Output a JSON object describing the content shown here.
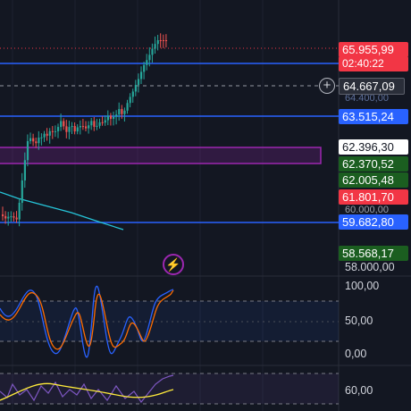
{
  "colors": {
    "background": "#131722",
    "candle_up": "#26a69a",
    "candle_down": "#ef5350",
    "level_line": "#2962ff",
    "zone": "#9c27b0",
    "ma_line": "#26c6da",
    "stoch_k": "#2962ff",
    "stoch_d": "#ff6d00",
    "osc_fast": "#7e57c2",
    "osc_slow": "#ffeb3b"
  },
  "price_scale": {
    "current_price": "65.955,99",
    "countdown": "02:40:22",
    "crosshair_price": "64.667,09",
    "overlapped_label": "64.400,00",
    "labels": [
      {
        "id": "level-63515",
        "text": "63.515,24",
        "style": "blue"
      },
      {
        "id": "price-62396",
        "text": "62.396,30",
        "style": "white"
      },
      {
        "id": "price-62370",
        "text": "62.370,52",
        "style": "green"
      },
      {
        "id": "price-62005",
        "text": "62.005,48",
        "style": "green"
      },
      {
        "id": "price-61801",
        "text": "61.801,70",
        "style": "red"
      },
      {
        "id": "level-59682",
        "text": "59.682,80",
        "style": "blue"
      },
      {
        "id": "price-58568",
        "text": "58.568,17",
        "style": "green"
      }
    ],
    "axis_60000": "60.000,00",
    "axis_58000": "58.000,00"
  },
  "stoch_scale": {
    "top": "100,00",
    "mid": "50,00",
    "bottom": "0,00"
  },
  "osc_scale": {
    "value": "60,00"
  },
  "icons": {
    "add": "plus-icon",
    "alert": "lightning-icon"
  }
}
